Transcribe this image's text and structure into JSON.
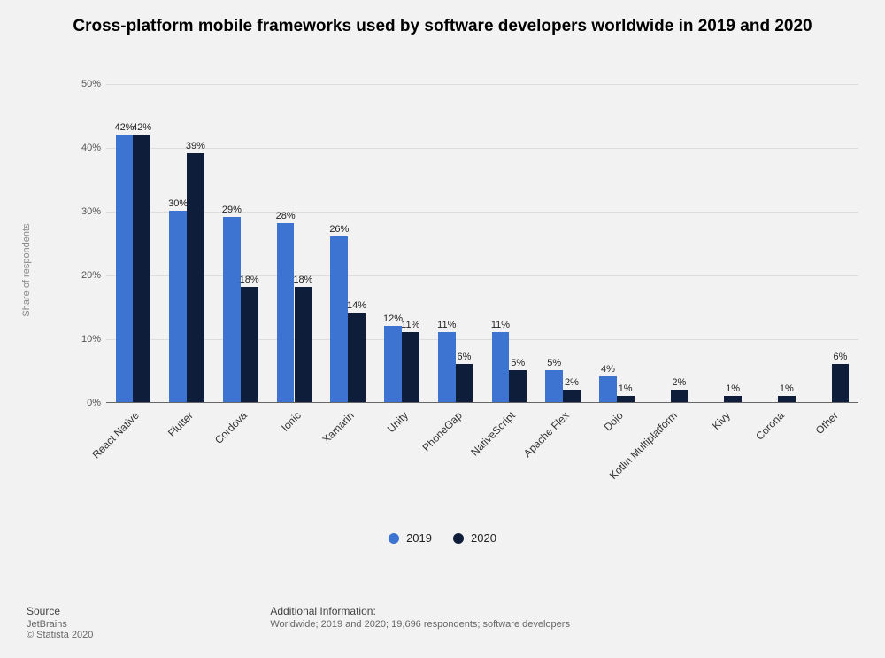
{
  "title": "Cross-platform mobile frameworks used by software developers worldwide in 2019 and 2020",
  "title_fontsize": 19,
  "chart": {
    "type": "bar",
    "ylabel": "Share of respondents",
    "ylim": [
      0,
      50
    ],
    "ytick_step": 10,
    "ytick_suffix": "%",
    "grid_color": "#dddddd",
    "axis_color": "#666666",
    "background": "#f2f2f2",
    "bar_gap_ratio": 0.35,
    "categories": [
      "React Native",
      "Flutter",
      "Cordova",
      "Ionic",
      "Xamarin",
      "Unity",
      "PhoneGap",
      "NativeScript",
      "Apache Flex",
      "Dojo",
      "Kotlin Multiplatform",
      "Kivy",
      "Corona",
      "Other"
    ],
    "series": [
      {
        "name": "2019",
        "color": "#3e74d1",
        "values": [
          42,
          30,
          29,
          28,
          26,
          12,
          11,
          11,
          5,
          4,
          null,
          null,
          null,
          null
        ]
      },
      {
        "name": "2020",
        "color": "#0e1d3a",
        "values": [
          42,
          39,
          18,
          18,
          14,
          11,
          6,
          5,
          2,
          1,
          2,
          1,
          1,
          6
        ]
      }
    ],
    "value_label_suffix": "%",
    "value_label_fontsize": 11,
    "xtick_fontsize": 12,
    "xtick_rotation": -45
  },
  "legend": {
    "items": [
      "2019",
      "2020"
    ],
    "colors": [
      "#3e74d1",
      "#0e1d3a"
    ]
  },
  "footer": {
    "source_heading": "Source",
    "source_text": "JetBrains",
    "copyright": "© Statista 2020",
    "info_heading": "Additional Information:",
    "info_text": "Worldwide; 2019 and 2020; 19,696 respondents; software developers"
  }
}
